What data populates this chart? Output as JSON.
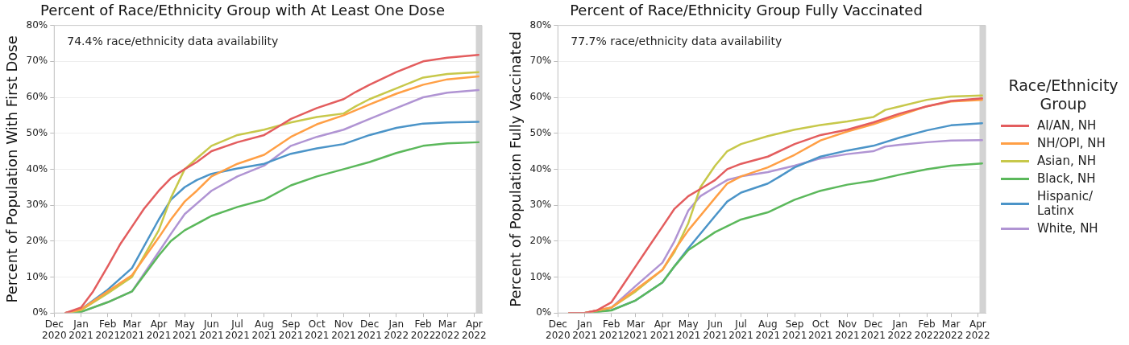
{
  "chart_data": [
    {
      "type": "line",
      "title": "Percent of Race/Ethnicity Group with At Least One Dose",
      "ylabel": "Percent of Population With First Dose",
      "annotations": [
        "74.4% race/ethnicity data availability"
      ],
      "xlim": [
        "2020-12-01",
        "2022-04-10"
      ],
      "ylim": [
        0,
        80
      ],
      "xticks": [
        {
          "value": "2020-12-01",
          "label": "Dec\n2020"
        },
        {
          "value": "2021-01-01",
          "label": "Jan\n2021"
        },
        {
          "value": "2021-02-01",
          "label": "Feb\n2021"
        },
        {
          "value": "2021-03-01",
          "label": "Mar\n2021"
        },
        {
          "value": "2021-04-01",
          "label": "Apr\n2021"
        },
        {
          "value": "2021-05-01",
          "label": "May\n2021"
        },
        {
          "value": "2021-06-01",
          "label": "Jun\n2021"
        },
        {
          "value": "2021-07-01",
          "label": "Jul\n2021"
        },
        {
          "value": "2021-08-01",
          "label": "Aug\n2021"
        },
        {
          "value": "2021-09-01",
          "label": "Sep\n2021"
        },
        {
          "value": "2021-10-01",
          "label": "Oct\n2021"
        },
        {
          "value": "2021-11-01",
          "label": "Nov\n2021"
        },
        {
          "value": "2021-12-01",
          "label": "Dec\n2021"
        },
        {
          "value": "2022-01-01",
          "label": "Jan\n2022"
        },
        {
          "value": "2022-02-01",
          "label": "Feb\n2022"
        },
        {
          "value": "2022-03-01",
          "label": "Mar\n2022"
        },
        {
          "value": "2022-04-01",
          "label": "Apr\n2022"
        }
      ],
      "yticks": [
        {
          "value": 0,
          "label": "0%"
        },
        {
          "value": 10,
          "label": "10%"
        },
        {
          "value": 20,
          "label": "20%"
        },
        {
          "value": 30,
          "label": "30%"
        },
        {
          "value": 40,
          "label": "40%"
        },
        {
          "value": 50,
          "label": "50%"
        },
        {
          "value": 60,
          "label": "60%"
        },
        {
          "value": 70,
          "label": "70%"
        },
        {
          "value": 80,
          "label": "80%"
        }
      ],
      "grid": "y",
      "marker": "none",
      "line_style": "solid",
      "bands": [
        {
          "axis": "x",
          "from": "2022-04-03",
          "to": "2022-04-10",
          "color": "#d3d3d3"
        }
      ],
      "series": [
        {
          "color": "#e35d5e",
          "x": [
            "2020-12-14",
            "2021-01-01",
            "2021-01-15",
            "2021-02-01",
            "2021-02-15",
            "2021-03-01",
            "2021-03-15",
            "2021-04-01",
            "2021-04-15",
            "2021-05-01",
            "2021-05-15",
            "2021-06-01",
            "2021-07-01",
            "2021-08-01",
            "2021-08-15",
            "2021-09-01",
            "2021-10-01",
            "2021-11-01",
            "2021-11-15",
            "2021-12-01",
            "2022-01-01",
            "2022-02-01",
            "2022-03-01",
            "2022-04-06"
          ],
          "values": [
            0,
            1.5,
            6,
            13,
            19,
            24,
            29,
            34,
            37.5,
            40,
            42,
            45,
            47.5,
            49.5,
            51.5,
            54,
            57,
            59.5,
            61.5,
            63.5,
            67,
            70,
            71,
            71.8
          ]
        },
        {
          "color": "#ff9f45",
          "x": [
            "2020-12-14",
            "2021-01-01",
            "2021-02-01",
            "2021-03-01",
            "2021-04-01",
            "2021-04-15",
            "2021-05-01",
            "2021-05-15",
            "2021-06-01",
            "2021-07-01",
            "2021-08-01",
            "2021-09-01",
            "2021-10-01",
            "2021-11-01",
            "2021-12-01",
            "2022-01-01",
            "2022-02-01",
            "2022-03-01",
            "2022-04-06"
          ],
          "values": [
            0,
            1,
            6,
            10.5,
            21,
            26,
            31,
            34,
            38,
            41.5,
            44,
            49,
            52.5,
            55,
            58,
            61,
            63.5,
            65,
            65.8
          ]
        },
        {
          "color": "#c7c84a",
          "x": [
            "2020-12-14",
            "2021-01-01",
            "2021-02-01",
            "2021-03-01",
            "2021-04-01",
            "2021-04-15",
            "2021-05-01",
            "2021-05-15",
            "2021-06-01",
            "2021-07-01",
            "2021-08-01",
            "2021-09-01",
            "2021-10-01",
            "2021-11-01",
            "2021-11-15",
            "2021-12-01",
            "2022-01-01",
            "2022-02-01",
            "2022-03-01",
            "2022-04-06"
          ],
          "values": [
            0,
            0.8,
            5.5,
            10,
            23,
            32,
            40,
            43,
            46.5,
            49.5,
            51,
            53,
            54.5,
            55.5,
            57.5,
            59.5,
            62.5,
            65.5,
            66.5,
            67
          ]
        },
        {
          "color": "#5bb85b",
          "x": [
            "2020-12-14",
            "2021-01-01",
            "2021-02-01",
            "2021-03-01",
            "2021-04-01",
            "2021-04-15",
            "2021-05-01",
            "2021-06-01",
            "2021-07-01",
            "2021-08-01",
            "2021-09-01",
            "2021-10-01",
            "2021-11-01",
            "2021-12-01",
            "2022-01-01",
            "2022-02-01",
            "2022-03-01",
            "2022-04-06"
          ],
          "values": [
            0,
            0.3,
            3,
            6,
            16,
            20,
            23,
            27,
            29.5,
            31.5,
            35.5,
            38,
            40,
            42,
            44.5,
            46.5,
            47.2,
            47.5
          ]
        },
        {
          "color": "#4b94c8",
          "x": [
            "2020-12-14",
            "2021-01-01",
            "2021-02-01",
            "2021-03-01",
            "2021-04-01",
            "2021-04-15",
            "2021-05-01",
            "2021-05-15",
            "2021-06-01",
            "2021-07-01",
            "2021-08-01",
            "2021-09-01",
            "2021-10-01",
            "2021-11-01",
            "2021-12-01",
            "2022-01-01",
            "2022-02-01",
            "2022-03-01",
            "2022-04-06"
          ],
          "values": [
            0,
            1,
            6.5,
            12.5,
            26,
            31.5,
            35,
            37,
            38.7,
            40.2,
            41.5,
            44.3,
            45.8,
            47,
            49.5,
            51.5,
            52.7,
            53,
            53.2
          ]
        },
        {
          "color": "#b094d3",
          "x": [
            "2020-12-14",
            "2021-01-01",
            "2021-02-01",
            "2021-03-01",
            "2021-04-01",
            "2021-04-15",
            "2021-05-01",
            "2021-06-01",
            "2021-07-01",
            "2021-08-01",
            "2021-09-01",
            "2021-10-01",
            "2021-11-01",
            "2021-12-01",
            "2022-01-01",
            "2022-02-01",
            "2022-03-01",
            "2022-04-06"
          ],
          "values": [
            0,
            0.3,
            3,
            6,
            17,
            22,
            27.5,
            34,
            38,
            41,
            46.5,
            49,
            51,
            54,
            57,
            60,
            61.3,
            62
          ]
        }
      ]
    },
    {
      "type": "line",
      "title": "Percent of Race/Ethnicity Group Fully Vaccinated",
      "ylabel": "Percent of Population Fully Vaccinated",
      "legend_title": "Race/Ethnicity Group",
      "annotations": [
        "77.7% race/ethnicity data availability"
      ],
      "xlim": [
        "2020-12-01",
        "2022-04-10"
      ],
      "ylim": [
        0,
        80
      ],
      "xticks": [
        {
          "value": "2020-12-01",
          "label": "Dec\n2020"
        },
        {
          "value": "2021-01-01",
          "label": "Jan\n2021"
        },
        {
          "value": "2021-02-01",
          "label": "Feb\n2021"
        },
        {
          "value": "2021-03-01",
          "label": "Mar\n2021"
        },
        {
          "value": "2021-04-01",
          "label": "Apr\n2021"
        },
        {
          "value": "2021-05-01",
          "label": "May\n2021"
        },
        {
          "value": "2021-06-01",
          "label": "Jun\n2021"
        },
        {
          "value": "2021-07-01",
          "label": "Jul\n2021"
        },
        {
          "value": "2021-08-01",
          "label": "Aug\n2021"
        },
        {
          "value": "2021-09-01",
          "label": "Sep\n2021"
        },
        {
          "value": "2021-10-01",
          "label": "Oct\n2021"
        },
        {
          "value": "2021-11-01",
          "label": "Nov\n2021"
        },
        {
          "value": "2021-12-01",
          "label": "Dec\n2021"
        },
        {
          "value": "2022-01-01",
          "label": "Jan\n2022"
        },
        {
          "value": "2022-02-01",
          "label": "Feb\n2022"
        },
        {
          "value": "2022-03-01",
          "label": "Mar\n2022"
        },
        {
          "value": "2022-04-01",
          "label": "Apr\n2022"
        }
      ],
      "yticks": [
        {
          "value": 0,
          "label": "0%"
        },
        {
          "value": 10,
          "label": "10%"
        },
        {
          "value": 20,
          "label": "20%"
        },
        {
          "value": 30,
          "label": "30%"
        },
        {
          "value": 40,
          "label": "40%"
        },
        {
          "value": 50,
          "label": "50%"
        },
        {
          "value": 60,
          "label": "60%"
        },
        {
          "value": 70,
          "label": "70%"
        },
        {
          "value": 80,
          "label": "80%"
        }
      ],
      "grid": "y",
      "legend": "right",
      "marker": "none",
      "line_style": "solid",
      "bands": [
        {
          "axis": "x",
          "from": "2022-04-03",
          "to": "2022-04-10",
          "color": "#d3d3d3"
        }
      ],
      "series": [
        {
          "name": "AI/AN, NH",
          "color": "#e35d5e",
          "x": [
            "2020-12-14",
            "2021-01-01",
            "2021-01-15",
            "2021-02-01",
            "2021-02-15",
            "2021-03-01",
            "2021-03-15",
            "2021-04-01",
            "2021-04-15",
            "2021-05-01",
            "2021-05-15",
            "2021-06-01",
            "2021-06-15",
            "2021-07-01",
            "2021-08-01",
            "2021-09-01",
            "2021-10-01",
            "2021-11-01",
            "2021-12-01",
            "2022-01-01",
            "2022-02-01",
            "2022-03-01",
            "2022-04-06"
          ],
          "values": [
            0,
            0,
            0.7,
            3,
            8,
            13,
            18,
            24,
            29,
            32.5,
            34.5,
            37,
            40,
            41.5,
            43.5,
            47,
            49.5,
            51,
            53,
            55.5,
            57.5,
            59,
            59.7
          ]
        },
        {
          "name": "NH/OPI, NH",
          "color": "#ff9f45",
          "x": [
            "2020-12-14",
            "2021-01-01",
            "2021-02-01",
            "2021-03-01",
            "2021-04-01",
            "2021-04-15",
            "2021-05-01",
            "2021-06-01",
            "2021-06-15",
            "2021-07-01",
            "2021-08-01",
            "2021-09-01",
            "2021-10-01",
            "2021-11-01",
            "2021-12-01",
            "2022-01-01",
            "2022-02-01",
            "2022-03-01",
            "2022-04-06"
          ],
          "values": [
            0,
            0,
            1.5,
            6.5,
            12,
            17.5,
            23,
            32,
            36,
            38,
            40.5,
            44,
            48,
            50.5,
            52.5,
            55,
            57.5,
            58.8,
            59.3
          ]
        },
        {
          "name": "Asian, NH",
          "color": "#c7c84a",
          "x": [
            "2020-12-14",
            "2021-01-01",
            "2021-02-01",
            "2021-03-01",
            "2021-04-01",
            "2021-04-15",
            "2021-05-01",
            "2021-05-15",
            "2021-06-01",
            "2021-06-15",
            "2021-07-01",
            "2021-08-01",
            "2021-09-01",
            "2021-10-01",
            "2021-11-01",
            "2021-12-01",
            "2021-12-15",
            "2022-01-01",
            "2022-02-01",
            "2022-03-01",
            "2022-04-06"
          ],
          "values": [
            0,
            0,
            1.5,
            6,
            12,
            17,
            25,
            35,
            41,
            45,
            47,
            49.2,
            51,
            52.3,
            53.3,
            54.5,
            56.5,
            57.5,
            59.3,
            60.2,
            60.5
          ]
        },
        {
          "name": "Black, NH",
          "color": "#5bb85b",
          "x": [
            "2020-12-14",
            "2021-01-01",
            "2021-02-01",
            "2021-03-01",
            "2021-04-01",
            "2021-04-15",
            "2021-05-01",
            "2021-06-01",
            "2021-07-01",
            "2021-08-01",
            "2021-09-01",
            "2021-10-01",
            "2021-11-01",
            "2021-12-01",
            "2022-01-01",
            "2022-02-01",
            "2022-03-01",
            "2022-04-06"
          ],
          "values": [
            0,
            0,
            0.7,
            3.5,
            8.5,
            13,
            17.5,
            22.5,
            26,
            28,
            31.5,
            34,
            35.7,
            36.8,
            38.5,
            40,
            41,
            41.6
          ]
        },
        {
          "name": "Hispanic/ Latinx",
          "color": "#4b94c8",
          "x": [
            "2020-12-14",
            "2021-01-01",
            "2021-02-01",
            "2021-03-01",
            "2021-04-01",
            "2021-04-15",
            "2021-05-01",
            "2021-06-01",
            "2021-06-15",
            "2021-07-01",
            "2021-08-01",
            "2021-08-15",
            "2021-09-01",
            "2021-10-01",
            "2021-11-01",
            "2021-12-01",
            "2022-01-01",
            "2022-02-01",
            "2022-03-01",
            "2022-04-06"
          ],
          "values": [
            0,
            0,
            0.8,
            3.5,
            8.5,
            13,
            18,
            27,
            31,
            33.5,
            36,
            38,
            40.5,
            43.5,
            45.2,
            46.5,
            48.8,
            50.8,
            52.2,
            52.8
          ]
        },
        {
          "name": "White, NH",
          "color": "#b094d3",
          "x": [
            "2020-12-14",
            "2021-01-01",
            "2021-02-01",
            "2021-03-01",
            "2021-04-01",
            "2021-04-15",
            "2021-05-01",
            "2021-05-15",
            "2021-06-01",
            "2021-06-15",
            "2021-07-01",
            "2021-08-01",
            "2021-09-01",
            "2021-10-01",
            "2021-11-01",
            "2021-12-01",
            "2021-12-15",
            "2022-01-01",
            "2022-02-01",
            "2022-03-01",
            "2022-04-06"
          ],
          "values": [
            0,
            0,
            1.5,
            7.5,
            14,
            20,
            28.5,
            32.5,
            35,
            37,
            38,
            39.2,
            41,
            43,
            44.2,
            45,
            46.3,
            46.8,
            47.5,
            48,
            48.1
          ]
        }
      ]
    }
  ]
}
